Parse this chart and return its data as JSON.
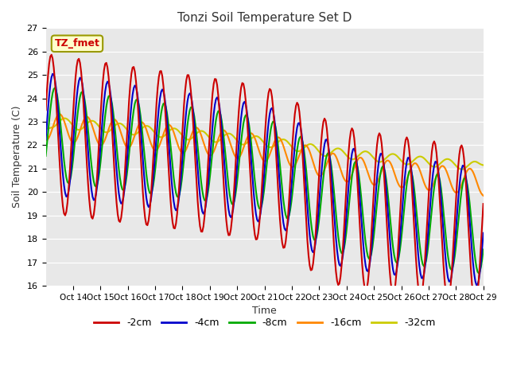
{
  "title": "Tonzi Soil Temperature Set D",
  "xlabel": "Time",
  "ylabel": "Soil Temperature (C)",
  "ylim": [
    16.0,
    27.0
  ],
  "yticks": [
    16.0,
    17.0,
    18.0,
    19.0,
    20.0,
    21.0,
    22.0,
    23.0,
    24.0,
    25.0,
    26.0,
    27.0
  ],
  "xtick_labels": [
    "Oct 14",
    "Oct 15",
    "Oct 16",
    "Oct 17",
    "Oct 18",
    "Oct 19",
    "Oct 20",
    "Oct 21",
    "Oct 22",
    "Oct 23",
    "Oct 24",
    "Oct 25",
    "Oct 26",
    "Oct 27",
    "Oct 28",
    "Oct 29"
  ],
  "legend_labels": [
    "-2cm",
    "-4cm",
    "-8cm",
    "-16cm",
    "-32cm"
  ],
  "legend_colors": [
    "#cc0000",
    "#0000cc",
    "#00aa00",
    "#ff8800",
    "#cccc00"
  ],
  "annotation_text": "TZ_fmet",
  "annotation_color": "#cc0000",
  "annotation_bg": "#ffffcc",
  "bg_color": "#e8e8e8",
  "line_width": 1.5
}
